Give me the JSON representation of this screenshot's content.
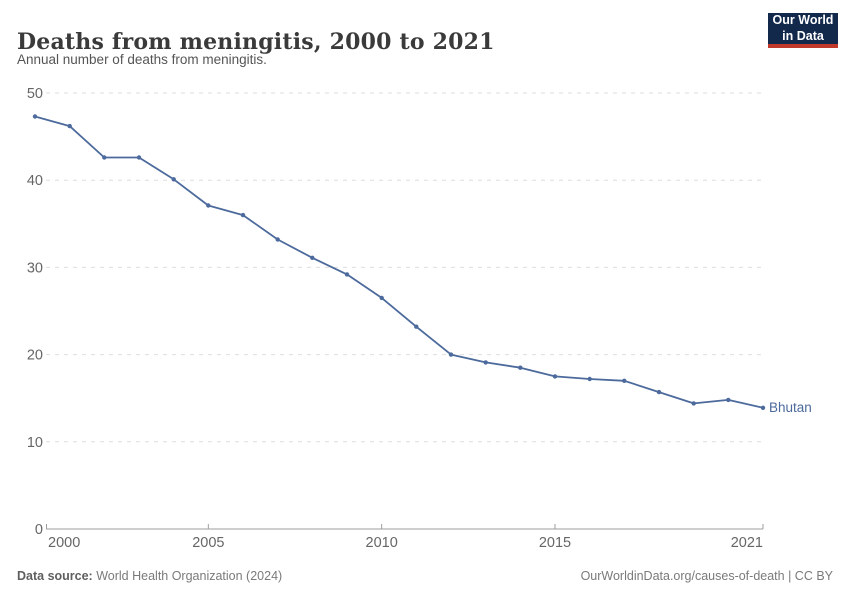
{
  "header": {
    "title": "Deaths from meningitis, 2000 to 2021",
    "subtitle": "Annual number of deaths from meningitis.",
    "logo": {
      "line1": "Our World",
      "line2": "in Data",
      "bg_color": "#12294C",
      "accent_color": "#C0392B"
    }
  },
  "chart_data": {
    "type": "line",
    "title": "Deaths from meningitis, 2000 to 2021",
    "subtitle": "Annual number of deaths from meningitis.",
    "x": [
      2000,
      2001,
      2002,
      2003,
      2004,
      2005,
      2006,
      2007,
      2008,
      2009,
      2010,
      2011,
      2012,
      2013,
      2014,
      2015,
      2016,
      2017,
      2018,
      2019,
      2020,
      2021
    ],
    "series": [
      {
        "name": "Bhutan",
        "color": "#4C6A9C",
        "values": [
          47.3,
          46.2,
          42.6,
          42.6,
          40.1,
          37.1,
          36.0,
          33.2,
          31.1,
          29.2,
          26.5,
          23.2,
          20.0,
          19.1,
          18.5,
          17.5,
          17.2,
          17.0,
          15.7,
          14.4,
          14.8,
          13.9
        ]
      }
    ],
    "xlabel": "",
    "ylabel": "",
    "xlim": [
      2000,
      2021
    ],
    "ylim": [
      0,
      50
    ],
    "x_ticks": [
      2000,
      2005,
      2010,
      2015,
      2021
    ],
    "y_ticks": [
      0,
      10,
      20,
      30,
      40,
      50
    ],
    "grid": "horizontal-dashed",
    "legend_position": "end-of-line",
    "colors": {
      "grid": "#dedede",
      "axis": "#9e9e9e",
      "tick_text": "#666666"
    }
  },
  "footer": {
    "source_label": "Data source:",
    "source_value": "World Health Organization (2024)",
    "attribution": "OurWorldinData.org/causes-of-death | CC BY"
  }
}
